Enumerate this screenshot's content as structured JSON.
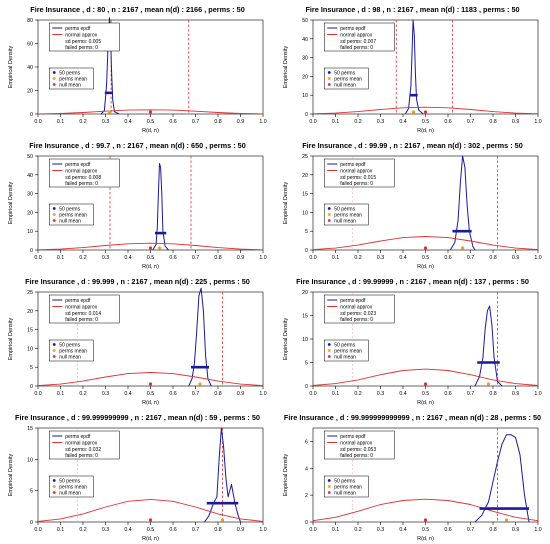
{
  "chart_data": [
    {
      "type": "line",
      "title": "Fire Insurance , d : 80 , n : 2167 , mean n(d) : 2166 , perms : 50",
      "xlabel": "R(d, n)",
      "ylabel": "Empirical Density",
      "xlim": [
        0,
        1
      ],
      "ylim": [
        0,
        80
      ],
      "x_ticks": [
        "0.0",
        "0.1",
        "0.2",
        "0.3",
        "0.4",
        "0.5",
        "0.6",
        "0.7",
        "0.8",
        "0.9",
        "1.0"
      ],
      "y_ticks": [
        "0",
        "20",
        "40",
        "60",
        "80"
      ],
      "series": [
        {
          "name": "perms epdf",
          "color": "#1a1a9a",
          "x": [
            0.28,
            0.295,
            0.305,
            0.312,
            0.318,
            0.322,
            0.326,
            0.332,
            0.34,
            0.36
          ],
          "y": [
            0,
            3,
            25,
            62,
            82,
            70,
            40,
            12,
            2,
            0
          ]
        },
        {
          "name": "normal approx",
          "color": "#e03030",
          "x": [
            0,
            0.1,
            0.2,
            0.3,
            0.4,
            0.5,
            0.6,
            0.7,
            0.8,
            0.9,
            1.0
          ],
          "y": [
            0.1,
            0.5,
            1.3,
            2.4,
            3.3,
            3.6,
            3.3,
            2.4,
            1.3,
            0.5,
            0.1
          ]
        }
      ],
      "perm_band": [
        0.297,
        0.333
      ],
      "perm_band_y": 18,
      "vlines": [
        0.325,
        0.67
      ],
      "points": {
        "null_mean": 0.5,
        "perms_mean": 0.318
      },
      "legend": {
        "perms_epdf": "perms epdf",
        "normal_approx": "normal approx",
        "sd": "sd perms: 0.005",
        "failed": "failed perms: 0",
        "perms": "50 perms",
        "perms_mean": "perms mean",
        "null_mean": "null mean"
      }
    },
    {
      "type": "line",
      "title": "Fire Insurance , d : 98 , n : 2167 , mean n(d) : 1183 , perms : 50",
      "xlabel": "R(d, n)",
      "ylabel": "Empirical Density",
      "xlim": [
        0,
        1
      ],
      "ylim": [
        0,
        50
      ],
      "x_ticks": [
        "0.0",
        "0.1",
        "0.2",
        "0.3",
        "0.4",
        "0.5",
        "0.6",
        "0.7",
        "0.8",
        "0.9",
        "1.0"
      ],
      "y_ticks": [
        "0",
        "10",
        "20",
        "30",
        "40",
        "50"
      ],
      "series": [
        {
          "name": "perms epdf",
          "color": "#1a1a9a",
          "x": [
            0.41,
            0.425,
            0.435,
            0.44,
            0.445,
            0.45,
            0.455,
            0.46,
            0.47,
            0.49
          ],
          "y": [
            0,
            3,
            15,
            32,
            50,
            42,
            22,
            8,
            2,
            0
          ]
        },
        {
          "name": "normal approx",
          "color": "#e03030",
          "x": [
            0,
            0.1,
            0.2,
            0.3,
            0.4,
            0.5,
            0.6,
            0.7,
            0.8,
            0.9,
            1.0
          ],
          "y": [
            0.1,
            0.5,
            1.3,
            2.4,
            3.3,
            3.6,
            3.3,
            2.4,
            1.3,
            0.5,
            0.1
          ]
        }
      ],
      "perm_band": [
        0.43,
        0.465
      ],
      "perm_band_y": 10,
      "vlines": [
        0.37,
        0.62
      ],
      "points": {
        "null_mean": 0.5,
        "perms_mean": 0.447
      },
      "legend": {
        "perms_epdf": "perms epdf",
        "normal_approx": "normal approx",
        "sd": "sd perms: 0.007",
        "failed": "failed perms: 0",
        "perms": "50 perms",
        "perms_mean": "perms mean",
        "null_mean": "null mean"
      }
    },
    {
      "type": "line",
      "title": "Fire Insurance , d : 99.7 , n : 2167 , mean n(d) : 650 , perms : 50",
      "xlabel": "R(d, n)",
      "ylabel": "Empirical Density",
      "xlim": [
        0,
        1
      ],
      "ylim": [
        0,
        50
      ],
      "x_ticks": [
        "0.0",
        "0.1",
        "0.2",
        "0.3",
        "0.4",
        "0.5",
        "0.6",
        "0.7",
        "0.8",
        "0.9",
        "1.0"
      ],
      "y_ticks": [
        "0",
        "10",
        "20",
        "30",
        "40",
        "50"
      ],
      "series": [
        {
          "name": "perms epdf",
          "color": "#1a1a9a",
          "x": [
            0.51,
            0.525,
            0.53,
            0.535,
            0.54,
            0.545,
            0.55,
            0.555,
            0.565,
            0.58
          ],
          "y": [
            0,
            3,
            12,
            30,
            46,
            44,
            30,
            10,
            2,
            0
          ]
        },
        {
          "name": "normal approx",
          "color": "#e03030",
          "x": [
            0,
            0.1,
            0.2,
            0.3,
            0.4,
            0.5,
            0.6,
            0.7,
            0.8,
            0.9,
            1.0
          ],
          "y": [
            0.1,
            0.5,
            1.3,
            2.4,
            3.3,
            3.6,
            3.3,
            2.4,
            1.3,
            0.5,
            0.1
          ]
        }
      ],
      "perm_band": [
        0.52,
        0.57
      ],
      "perm_band_y": 9,
      "vlines": [
        0.32,
        0.68
      ],
      "points": {
        "null_mean": 0.5,
        "perms_mean": 0.54
      },
      "legend": {
        "perms_epdf": "perms epdf",
        "normal_approx": "normal approx",
        "sd": "sd perms: 0.008",
        "failed": "failed perms: 0",
        "perms": "50 perms",
        "perms_mean": "perms mean",
        "null_mean": "null mean"
      }
    },
    {
      "type": "line",
      "title": "Fire Insurance , d : 99.99 , n : 2167 , mean n(d) : 302 , perms : 50",
      "xlabel": "R(d, n)",
      "ylabel": "Empirical Density",
      "xlim": [
        0,
        1
      ],
      "ylim": [
        0,
        25
      ],
      "x_ticks": [
        "0.0",
        "0.1",
        "0.2",
        "0.3",
        "0.4",
        "0.5",
        "0.6",
        "0.7",
        "0.8",
        "0.9",
        "1.0"
      ],
      "y_ticks": [
        "0",
        "5",
        "10",
        "15",
        "20",
        "25"
      ],
      "series": [
        {
          "name": "perms epdf",
          "color": "#1a1a9a",
          "x": [
            0.61,
            0.63,
            0.645,
            0.655,
            0.665,
            0.675,
            0.685,
            0.695,
            0.71,
            0.72
          ],
          "y": [
            0,
            2,
            8,
            18,
            25,
            22,
            12,
            5,
            1,
            0
          ]
        },
        {
          "name": "normal approx",
          "color": "#e03030",
          "x": [
            0,
            0.1,
            0.2,
            0.3,
            0.4,
            0.5,
            0.6,
            0.7,
            0.8,
            0.9,
            1.0
          ],
          "y": [
            0.1,
            0.5,
            1.3,
            2.4,
            3.3,
            3.6,
            3.3,
            2.4,
            1.3,
            0.5,
            0.1
          ]
        }
      ],
      "perm_band": [
        0.62,
        0.705
      ],
      "perm_band_y": 5,
      "vlines": [
        0.82
      ],
      "points": {
        "null_mean": 0.5,
        "perms_mean": 0.665
      },
      "legend": {
        "perms_epdf": "perms epdf",
        "normal_approx": "normal approx",
        "sd": "sd perms: 0.015",
        "failed": "failed perms: 0",
        "perms": "50 perms",
        "perms_mean": "perms mean",
        "null_mean": "null mean"
      }
    },
    {
      "type": "line",
      "title": "Fire Insurance , d : 99.999 , n : 2167 , mean n(d) : 225 , perms : 50",
      "xlabel": "R(d, n)",
      "ylabel": "Empirical Density",
      "xlim": [
        0,
        1
      ],
      "ylim": [
        0,
        25
      ],
      "x_ticks": [
        "0.0",
        "0.1",
        "0.2",
        "0.3",
        "0.4",
        "0.5",
        "0.6",
        "0.7",
        "0.8",
        "0.9",
        "1.0"
      ],
      "y_ticks": [
        "0",
        "5",
        "10",
        "15",
        "20",
        "25"
      ],
      "series": [
        {
          "name": "perms epdf",
          "color": "#1a1a9a",
          "x": [
            0.67,
            0.685,
            0.695,
            0.705,
            0.715,
            0.725,
            0.735,
            0.745,
            0.755,
            0.77
          ],
          "y": [
            0,
            2,
            6,
            14,
            24,
            26,
            20,
            8,
            2,
            0
          ]
        },
        {
          "name": "normal approx",
          "color": "#e03030",
          "x": [
            0,
            0.1,
            0.2,
            0.3,
            0.4,
            0.5,
            0.6,
            0.7,
            0.8,
            0.9,
            1.0
          ],
          "y": [
            0.1,
            0.5,
            1.3,
            2.4,
            3.3,
            3.6,
            3.3,
            2.4,
            1.3,
            0.5,
            0.1
          ]
        }
      ],
      "perm_band": [
        0.68,
        0.76
      ],
      "perm_band_y": 5,
      "vlines": [
        0.82
      ],
      "points": {
        "null_mean": 0.5,
        "perms_mean": 0.72
      },
      "legend": {
        "perms_epdf": "perms epdf",
        "normal_approx": "normal approx",
        "sd": "sd perms: 0.014",
        "failed": "failed perms: 0",
        "perms": "50 perms",
        "perms_mean": "perms mean",
        "null_mean": "null mean"
      }
    },
    {
      "type": "line",
      "title": "Fire Insurance , d : 99.99999 , n : 2167 , mean n(d) : 137 , perms : 50",
      "xlabel": "R(d, n)",
      "ylabel": "Empirical Density",
      "xlim": [
        0,
        1
      ],
      "ylim": [
        0,
        20
      ],
      "x_ticks": [
        "0.0",
        "0.1",
        "0.2",
        "0.3",
        "0.4",
        "0.5",
        "0.6",
        "0.7",
        "0.8",
        "0.9",
        "1.0"
      ],
      "y_ticks": [
        "0",
        "5",
        "10",
        "15",
        "20"
      ],
      "series": [
        {
          "name": "perms epdf",
          "color": "#1a1a9a",
          "x": [
            0.72,
            0.74,
            0.755,
            0.765,
            0.775,
            0.785,
            0.795,
            0.805,
            0.82,
            0.84
          ],
          "y": [
            0,
            2,
            6,
            12,
            16,
            17,
            13,
            6,
            1,
            0
          ]
        },
        {
          "name": "normal approx",
          "color": "#e03030",
          "x": [
            0,
            0.1,
            0.2,
            0.3,
            0.4,
            0.5,
            0.6,
            0.7,
            0.8,
            0.9,
            1.0
          ],
          "y": [
            0.1,
            0.5,
            1.3,
            2.4,
            3.3,
            3.6,
            3.3,
            2.4,
            1.3,
            0.5,
            0.1
          ]
        }
      ],
      "perm_band": [
        0.73,
        0.83
      ],
      "perm_band_y": 5,
      "vlines": [
        0.82
      ],
      "points": {
        "null_mean": 0.5,
        "perms_mean": 0.78
      },
      "legend": {
        "perms_epdf": "perms epdf",
        "normal_approx": "normal approx",
        "sd": "sd perms: 0.023",
        "failed": "failed perms: 0",
        "perms": "50 perms",
        "perms_mean": "perms mean",
        "null_mean": "null mean"
      }
    },
    {
      "type": "line",
      "title": "Fire Insurance , d : 99.999999999 , n : 2167 , mean n(d) : 59 , perms : 50",
      "xlabel": "R(d, n)",
      "ylabel": "Empirical Density",
      "xlim": [
        0,
        1
      ],
      "ylim": [
        0,
        15
      ],
      "x_ticks": [
        "0.0",
        "0.1",
        "0.2",
        "0.3",
        "0.4",
        "0.5",
        "0.6",
        "0.7",
        "0.8",
        "0.9",
        "1.0"
      ],
      "y_ticks": [
        "0",
        "5",
        "10",
        "15"
      ],
      "series": [
        {
          "name": "perms epdf",
          "color": "#1a1a9a",
          "x": [
            0.74,
            0.76,
            0.78,
            0.795,
            0.805,
            0.815,
            0.825,
            0.835,
            0.845,
            0.86,
            0.875,
            0.89,
            0.9
          ],
          "y": [
            0,
            1,
            3,
            4,
            10,
            15,
            12,
            7,
            4,
            6,
            3,
            1,
            0
          ]
        },
        {
          "name": "normal approx",
          "color": "#e03030",
          "x": [
            0,
            0.1,
            0.2,
            0.3,
            0.4,
            0.5,
            0.6,
            0.7,
            0.8,
            0.9,
            1.0
          ],
          "y": [
            0.1,
            0.5,
            1.3,
            2.4,
            3.3,
            3.6,
            3.3,
            2.4,
            1.3,
            0.5,
            0.1
          ]
        }
      ],
      "perm_band": [
        0.75,
        0.89
      ],
      "perm_band_y": 3,
      "vlines": [
        0.82
      ],
      "points": {
        "null_mean": 0.5,
        "perms_mean": 0.82
      },
      "legend": {
        "perms_epdf": "perms epdf",
        "normal_approx": "normal approx",
        "sd": "sd perms: 0.032",
        "failed": "failed perms: 0",
        "perms": "50 perms",
        "perms_mean": "perms mean",
        "null_mean": "null mean"
      }
    },
    {
      "type": "line",
      "title": "Fire Insurance , d : 99.999999999999 , n : 2167 , mean n(d) : 28 , perms : 50",
      "xlabel": "R(d, n)",
      "ylabel": "Empirical Density",
      "xlim": [
        0,
        1
      ],
      "ylim": [
        0,
        7
      ],
      "x_ticks": [
        "0.0",
        "0.1",
        "0.2",
        "0.3",
        "0.4",
        "0.5",
        "0.6",
        "0.7",
        "0.8",
        "0.9",
        "1.0"
      ],
      "y_ticks": [
        "0",
        "2",
        "4",
        "6"
      ],
      "series": [
        {
          "name": "perms epdf",
          "color": "#1a1a9a",
          "x": [
            0.72,
            0.75,
            0.78,
            0.8,
            0.82,
            0.84,
            0.86,
            0.88,
            0.9,
            0.92,
            0.94,
            0.96
          ],
          "y": [
            0,
            0.5,
            1.5,
            3,
            4.5,
            5.8,
            6.5,
            6.5,
            6.3,
            5,
            2,
            0
          ]
        },
        {
          "name": "normal approx",
          "color": "#e03030",
          "x": [
            0,
            0.1,
            0.2,
            0.3,
            0.4,
            0.5,
            0.6,
            0.7,
            0.8,
            0.9,
            1.0
          ],
          "y": [
            0.1,
            0.35,
            0.8,
            1.3,
            1.6,
            1.7,
            1.6,
            1.3,
            0.8,
            0.35,
            0.1
          ]
        }
      ],
      "perm_band": [
        0.74,
        0.96
      ],
      "perm_band_y": 1,
      "vlines": [
        0.82
      ],
      "points": {
        "null_mean": 0.5,
        "perms_mean": 0.86
      },
      "legend": {
        "perms_epdf": "perms epdf",
        "normal_approx": "normal approx",
        "sd": "sd perms: 0.053",
        "failed": "failed perms: 0",
        "perms": "50 perms",
        "perms_mean": "perms mean",
        "null_mean": "null mean"
      }
    }
  ]
}
